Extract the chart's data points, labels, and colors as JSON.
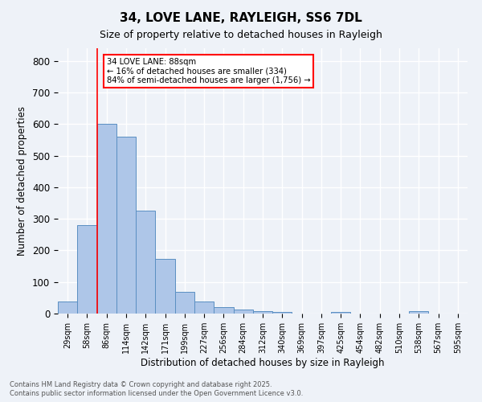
{
  "title1": "34, LOVE LANE, RAYLEIGH, SS6 7DL",
  "title2": "Size of property relative to detached houses in Rayleigh",
  "xlabel": "Distribution of detached houses by size in Rayleigh",
  "ylabel": "Number of detached properties",
  "categories": [
    "29sqm",
    "58sqm",
    "86sqm",
    "114sqm",
    "142sqm",
    "171sqm",
    "199sqm",
    "227sqm",
    "256sqm",
    "284sqm",
    "312sqm",
    "340sqm",
    "369sqm",
    "397sqm",
    "425sqm",
    "454sqm",
    "482sqm",
    "510sqm",
    "538sqm",
    "567sqm",
    "595sqm"
  ],
  "values": [
    37,
    280,
    600,
    560,
    327,
    172,
    68,
    37,
    20,
    12,
    8,
    5,
    0,
    0,
    5,
    0,
    0,
    0,
    7,
    0,
    0
  ],
  "bar_color": "#aec6e8",
  "bar_edge_color": "#5a8fc2",
  "vline_color": "red",
  "annotation_text": "34 LOVE LANE: 88sqm\n← 16% of detached houses are smaller (334)\n84% of semi-detached houses are larger (1,756) →",
  "annotation_box_color": "white",
  "annotation_box_edge": "red",
  "ylim": [
    0,
    840
  ],
  "yticks": [
    0,
    100,
    200,
    300,
    400,
    500,
    600,
    700,
    800
  ],
  "background_color": "#eef2f8",
  "grid_color": "white",
  "footnote1": "Contains HM Land Registry data © Crown copyright and database right 2025.",
  "footnote2": "Contains public sector information licensed under the Open Government Licence v3.0."
}
